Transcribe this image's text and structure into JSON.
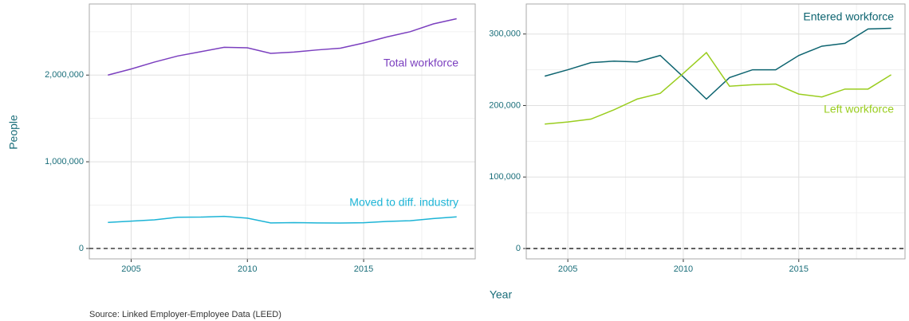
{
  "chart_data": [
    {
      "type": "line",
      "x": [
        2004,
        2005,
        2006,
        2007,
        2008,
        2009,
        2010,
        2011,
        2012,
        2013,
        2014,
        2015,
        2016,
        2017,
        2018,
        2019
      ],
      "series": [
        {
          "name": "Total workforce",
          "color": "#7b3fbf",
          "values": [
            2000000,
            2070000,
            2150000,
            2220000,
            2270000,
            2320000,
            2315000,
            2250000,
            2265000,
            2290000,
            2310000,
            2370000,
            2440000,
            2500000,
            2590000,
            2650000
          ]
        },
        {
          "name": "Moved to diff. industry",
          "color": "#1cb4d6",
          "values": [
            300000,
            315000,
            330000,
            360000,
            362000,
            370000,
            350000,
            295000,
            298000,
            295000,
            293000,
            297000,
            312000,
            320000,
            345000,
            365000
          ]
        }
      ],
      "xlim": [
        2003.2,
        2019.8
      ],
      "xticks": [
        2005,
        2010,
        2015
      ],
      "ylim": [
        -120000,
        2820000
      ],
      "yticks": [
        0,
        {
          "value": 1000000,
          "label": "1,000,000"
        },
        {
          "value": 2000000,
          "label": "2,000,000"
        }
      ],
      "reference_line": 0,
      "grid": true
    },
    {
      "type": "line",
      "x": [
        2004,
        2005,
        2006,
        2007,
        2008,
        2009,
        2010,
        2011,
        2012,
        2013,
        2014,
        2015,
        2016,
        2017,
        2018,
        2019
      ],
      "series": [
        {
          "name": "Entered workforce",
          "color": "#0d6470",
          "values": [
            241000,
            250000,
            260000,
            262000,
            261000,
            270000,
            240000,
            209000,
            239000,
            250000,
            250000,
            270000,
            283000,
            287000,
            307000,
            308000
          ]
        },
        {
          "name": "Left workforce",
          "color": "#9acd1f",
          "values": [
            174000,
            177000,
            181000,
            194000,
            209000,
            217000,
            245000,
            274000,
            227000,
            229000,
            230000,
            216000,
            212000,
            223000,
            223000,
            243000
          ]
        }
      ],
      "xlim": [
        2003.2,
        2019.6
      ],
      "xticks": [
        2005,
        2010,
        2015
      ],
      "ylim": [
        -14500,
        342000
      ],
      "yticks": [
        0,
        {
          "value": 100000,
          "label": "100,000"
        },
        {
          "value": 200000,
          "label": "200,000"
        },
        {
          "value": 300000,
          "label": "300,000"
        }
      ],
      "reference_line": 0,
      "grid": true
    }
  ],
  "y_label": "People",
  "x_label": "Year",
  "source": "Source: Linked Employer-Employee Data (LEED)"
}
